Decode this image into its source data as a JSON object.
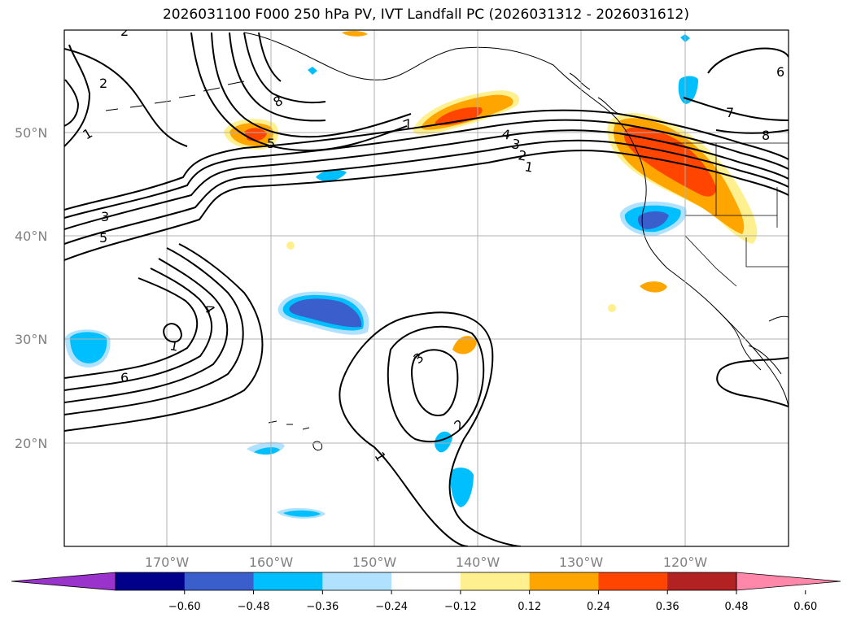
{
  "title": "2026031100 F000 250 hPa PV, IVT Landfall PC (2026031312 - 2026031612)",
  "lat_labels": [
    "50°N",
    "40°N",
    "30°N",
    "20°N"
  ],
  "lon_labels": [
    "170°W",
    "160°W",
    "150°W",
    "140°W",
    "130°W",
    "120°W"
  ],
  "colorbar": {
    "colors": [
      "#9933cc",
      "#00008b",
      "#3a5fcd",
      "#00bfff",
      "#b0e2ff",
      "#ffffff",
      "#fff08f",
      "#ffa500",
      "#ff4500",
      "#b22222",
      "#ff88aa"
    ],
    "tick_labels": [
      "−0.60",
      "−0.48",
      "−0.36",
      "−0.24",
      "−0.12",
      "0.12",
      "0.24",
      "0.36",
      "0.48",
      "0.60"
    ]
  },
  "contour_labels": [
    "2",
    "2",
    "1",
    "3",
    "5",
    "8",
    "5",
    "7",
    "4",
    "3",
    "2",
    "1",
    "7",
    "8",
    "6",
    "4",
    "1",
    "6",
    "3",
    "2",
    "1"
  ],
  "colors": {
    "frame": "#000000",
    "grid": "#b0b0b0",
    "coast": "#000000"
  }
}
